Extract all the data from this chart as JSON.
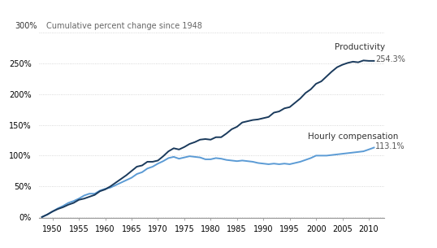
{
  "title": "Cumulative percent change since 1948",
  "productivity_color": "#1a3a5c",
  "wages_color": "#5b9bd5",
  "background_color": "#ffffff",
  "xlim": [
    1947.5,
    2013.0
  ],
  "ylim": [
    -0.02,
    3.05
  ],
  "xticks": [
    1950,
    1955,
    1960,
    1965,
    1970,
    1975,
    1980,
    1985,
    1990,
    1995,
    2000,
    2005,
    2010
  ],
  "yticks": [
    0.0,
    0.5,
    1.0,
    1.5,
    2.0,
    2.5,
    3.0
  ],
  "ytick_labels": [
    "0%",
    "50%",
    "100%",
    "150%",
    "200%",
    "250%",
    "300%"
  ],
  "productivity_label": "Productivity",
  "wages_label": "Hourly compensation",
  "productivity_end": "254.3%",
  "wages_end": "113.1%",
  "productivity_data": {
    "years": [
      1948,
      1949,
      1950,
      1951,
      1952,
      1953,
      1954,
      1955,
      1956,
      1957,
      1958,
      1959,
      1960,
      1961,
      1962,
      1963,
      1964,
      1965,
      1966,
      1967,
      1968,
      1969,
      1970,
      1971,
      1972,
      1973,
      1974,
      1975,
      1976,
      1977,
      1978,
      1979,
      1980,
      1981,
      1982,
      1983,
      1984,
      1985,
      1986,
      1987,
      1988,
      1989,
      1990,
      1991,
      1992,
      1993,
      1994,
      1995,
      1996,
      1997,
      1998,
      1999,
      2000,
      2001,
      2002,
      2003,
      2004,
      2005,
      2006,
      2007,
      2008,
      2009,
      2010,
      2011
    ],
    "values": [
      0.0,
      0.04,
      0.09,
      0.13,
      0.16,
      0.2,
      0.23,
      0.28,
      0.3,
      0.33,
      0.36,
      0.42,
      0.45,
      0.5,
      0.56,
      0.62,
      0.68,
      0.75,
      0.82,
      0.84,
      0.9,
      0.9,
      0.92,
      0.99,
      1.07,
      1.12,
      1.1,
      1.14,
      1.19,
      1.22,
      1.26,
      1.27,
      1.26,
      1.3,
      1.3,
      1.36,
      1.43,
      1.47,
      1.54,
      1.56,
      1.58,
      1.59,
      1.61,
      1.63,
      1.7,
      1.72,
      1.77,
      1.79,
      1.86,
      1.93,
      2.02,
      2.08,
      2.17,
      2.21,
      2.29,
      2.37,
      2.44,
      2.48,
      2.51,
      2.53,
      2.52,
      2.55,
      2.543,
      2.543
    ]
  },
  "wages_data": {
    "years": [
      1948,
      1949,
      1950,
      1951,
      1952,
      1953,
      1954,
      1955,
      1956,
      1957,
      1958,
      1959,
      1960,
      1961,
      1962,
      1963,
      1964,
      1965,
      1966,
      1967,
      1968,
      1969,
      1970,
      1971,
      1972,
      1973,
      1974,
      1975,
      1976,
      1977,
      1978,
      1979,
      1980,
      1981,
      1982,
      1983,
      1984,
      1985,
      1986,
      1987,
      1988,
      1989,
      1990,
      1991,
      1992,
      1993,
      1994,
      1995,
      1996,
      1997,
      1998,
      1999,
      2000,
      2001,
      2002,
      2003,
      2004,
      2005,
      2006,
      2007,
      2008,
      2009,
      2010,
      2011
    ],
    "values": [
      0.0,
      0.04,
      0.09,
      0.14,
      0.18,
      0.23,
      0.26,
      0.3,
      0.35,
      0.38,
      0.38,
      0.43,
      0.46,
      0.48,
      0.52,
      0.56,
      0.6,
      0.64,
      0.7,
      0.73,
      0.79,
      0.82,
      0.87,
      0.91,
      0.96,
      0.98,
      0.95,
      0.97,
      0.99,
      0.98,
      0.97,
      0.94,
      0.94,
      0.96,
      0.95,
      0.93,
      0.92,
      0.91,
      0.92,
      0.91,
      0.9,
      0.88,
      0.87,
      0.86,
      0.87,
      0.86,
      0.87,
      0.86,
      0.88,
      0.9,
      0.93,
      0.96,
      1.0,
      1.0,
      1.0,
      1.01,
      1.02,
      1.03,
      1.04,
      1.05,
      1.06,
      1.07,
      1.1,
      1.131
    ]
  }
}
